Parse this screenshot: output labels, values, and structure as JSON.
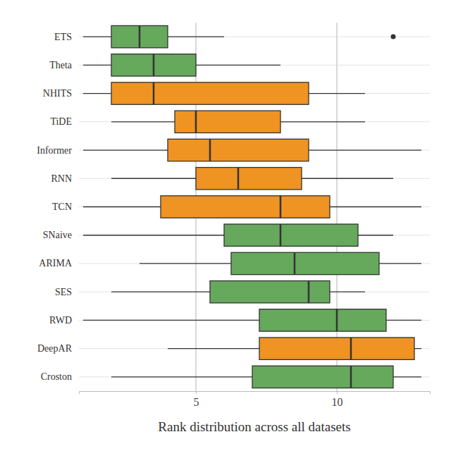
{
  "chart_data": {
    "type": "box",
    "orientation": "horizontal",
    "xlabel": "Rank distribution across all datasets",
    "categories": [
      "ETS",
      "Theta",
      "NHITS",
      "TiDE",
      "Informer",
      "RNN",
      "TCN",
      "SNaive",
      "ARIMA",
      "SES",
      "RWD",
      "DeepAR",
      "Croston"
    ],
    "min": [
      1,
      1,
      1,
      2,
      1,
      2,
      1,
      1,
      3,
      2,
      1,
      4,
      2
    ],
    "q1": [
      2,
      2,
      2,
      4.25,
      4,
      5,
      3.75,
      6,
      6.25,
      5.5,
      7.25,
      7.25,
      7
    ],
    "median": [
      3,
      3.5,
      3.5,
      5,
      5.5,
      6.5,
      8,
      8,
      8.5,
      9,
      10,
      10.5,
      10.5
    ],
    "q3": [
      4,
      5,
      9,
      8,
      9,
      8.75,
      9.75,
      10.75,
      11.5,
      9.75,
      11.75,
      12.75,
      12
    ],
    "max": [
      6,
      8,
      11,
      11,
      13,
      12,
      13,
      12,
      13,
      11,
      13,
      13,
      13
    ],
    "outliers": [
      [
        12
      ],
      [],
      [],
      [],
      [],
      [],
      [],
      [],
      [],
      [],
      [],
      [],
      []
    ],
    "colors": [
      "#66a85c",
      "#66a85c",
      "#ef9322",
      "#ef9322",
      "#ef9322",
      "#ef9322",
      "#ef9322",
      "#66a85c",
      "#66a85c",
      "#66a85c",
      "#66a85c",
      "#ef9322",
      "#66a85c"
    ],
    "xlim": [
      0.85,
      13.3
    ],
    "xticks": [
      5,
      10
    ],
    "grid": true
  }
}
